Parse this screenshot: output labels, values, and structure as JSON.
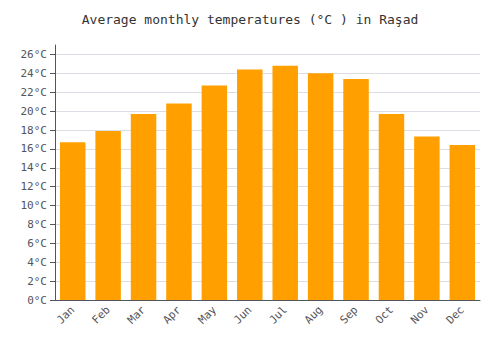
{
  "chart_data": {
    "type": "bar",
    "title": "Average monthly temperatures (°C ) in Raşad",
    "categories": [
      "Jan",
      "Feb",
      "Mar",
      "Apr",
      "May",
      "Jun",
      "Jul",
      "Aug",
      "Sep",
      "Oct",
      "Nov",
      "Dec"
    ],
    "values": [
      16.7,
      17.9,
      19.7,
      20.8,
      22.7,
      24.4,
      24.8,
      24.0,
      23.4,
      19.7,
      17.3,
      16.4
    ],
    "color": "#FFA000",
    "ylim": [
      0,
      27
    ],
    "yticks": [
      {
        "value": 0,
        "label": "0°C"
      },
      {
        "value": 2,
        "label": "2°C"
      },
      {
        "value": 4,
        "label": "4°C"
      },
      {
        "value": 6,
        "label": "6°C"
      },
      {
        "value": 8,
        "label": "8°C"
      },
      {
        "value": 10,
        "label": "10°C"
      },
      {
        "value": 12,
        "label": "12°C"
      },
      {
        "value": 14,
        "label": "14°C"
      },
      {
        "value": 16,
        "label": "16°C"
      },
      {
        "value": 18,
        "label": "18°C"
      },
      {
        "value": 20,
        "label": "20°C"
      },
      {
        "value": 22,
        "label": "22°C"
      },
      {
        "value": 24,
        "label": "24°C"
      },
      {
        "value": 26,
        "label": "26°C"
      }
    ],
    "grid": true
  }
}
